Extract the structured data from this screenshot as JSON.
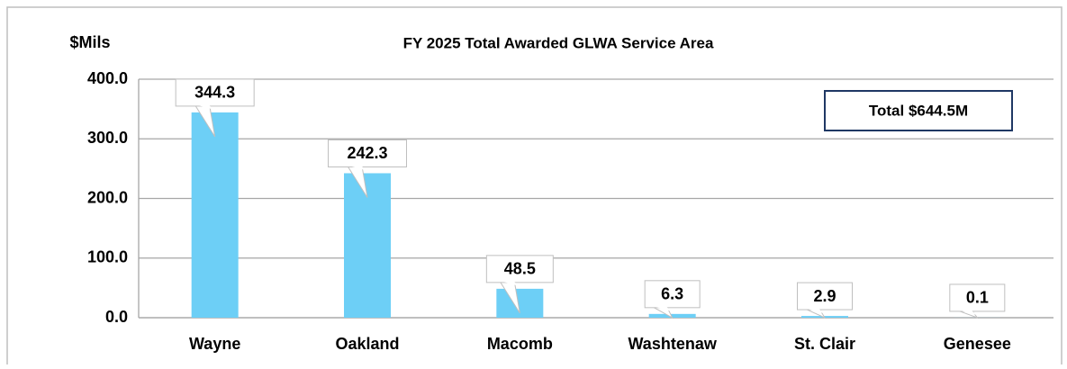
{
  "chart_data": {
    "type": "bar",
    "title": "FY 2025 Total Awarded GLWA Service Area",
    "y_label": "$Mils",
    "annotation": "Total $644.5M",
    "categories": [
      "Wayne",
      "Oakland",
      "Macomb",
      "Washtenaw",
      "St. Clair",
      "Genesee"
    ],
    "values": [
      344.3,
      242.3,
      48.5,
      6.3,
      2.9,
      0.1
    ],
    "color": "#6dcff6",
    "ylim": [
      0,
      400
    ],
    "yticks": [
      {
        "value": 0,
        "label": "0.0"
      },
      {
        "value": 100,
        "label": "100.0"
      },
      {
        "value": 200,
        "label": "200.0"
      },
      {
        "value": 300,
        "label": "300.0"
      },
      {
        "value": 400,
        "label": "400.0"
      }
    ],
    "grid": true
  }
}
